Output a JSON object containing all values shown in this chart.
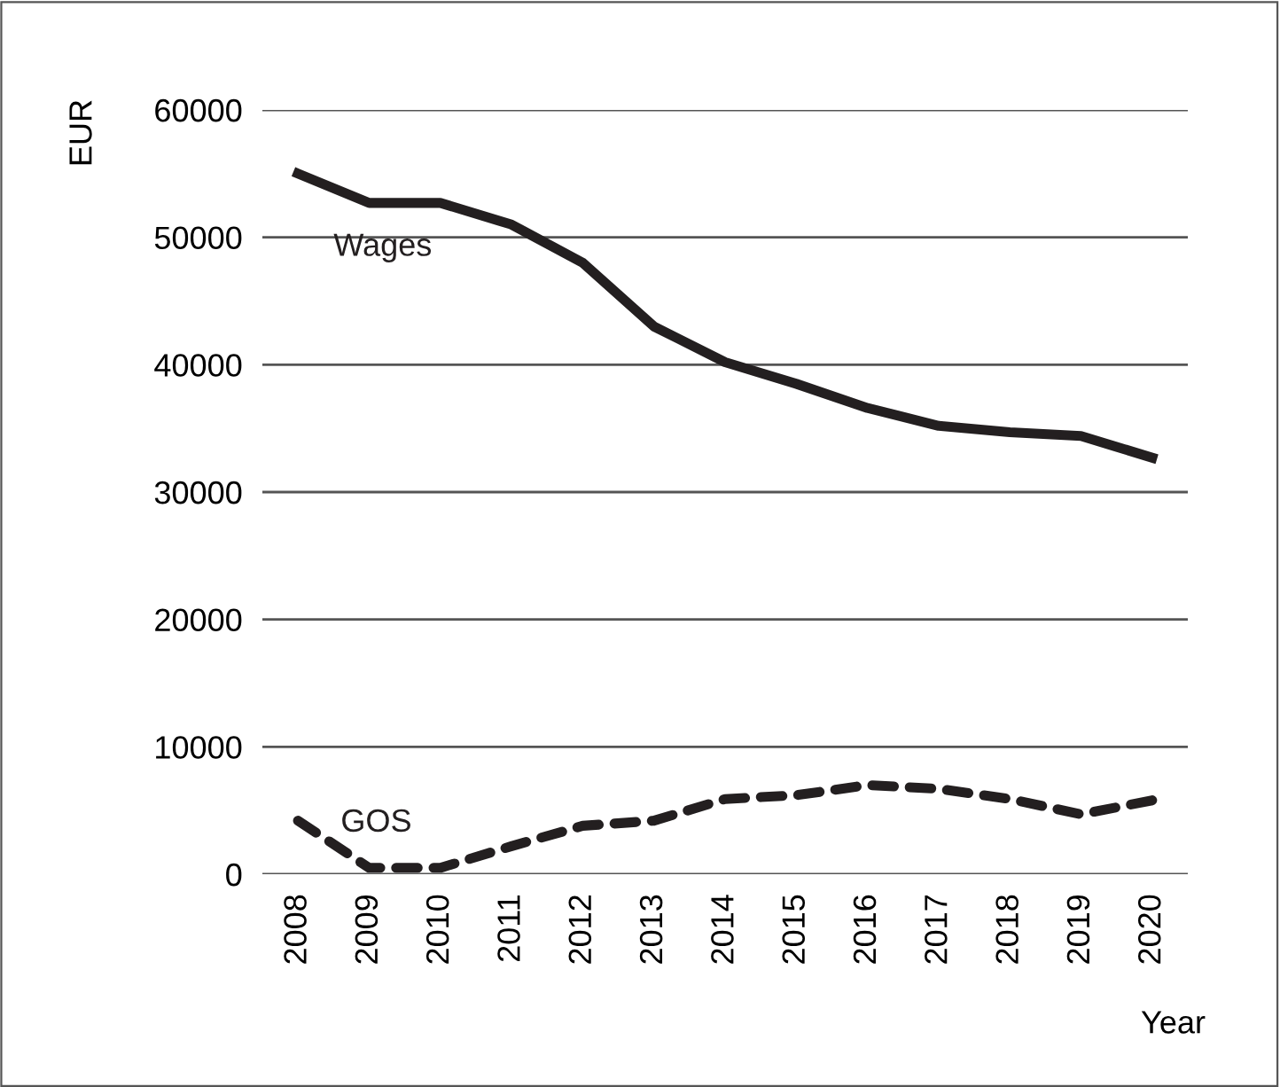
{
  "chart_data": {
    "type": "line",
    "xlabel": "Year",
    "ylabel": "EUR",
    "categories": [
      "2008",
      "2009",
      "2010",
      "2011",
      "2012",
      "2013",
      "2014",
      "2015",
      "2016",
      "2017",
      "2018",
      "2019",
      "2020"
    ],
    "series": [
      {
        "name": "Wages",
        "color": "#231f20",
        "line_style": "solid",
        "values": [
          55000,
          52700,
          52700,
          51000,
          48000,
          43000,
          40200,
          38500,
          36600,
          35200,
          34700,
          34400,
          32700
        ]
      },
      {
        "name": "GOS",
        "color": "#231f20",
        "line_style": "dashed",
        "values": [
          4200,
          500,
          500,
          2200,
          3800,
          4200,
          5900,
          6200,
          7000,
          6700,
          5900,
          4700,
          5800
        ]
      }
    ],
    "ylim": [
      0,
      60000
    ],
    "yticks": [
      0,
      10000,
      20000,
      30000,
      40000,
      50000,
      60000
    ],
    "grid": "y",
    "legend": false
  }
}
